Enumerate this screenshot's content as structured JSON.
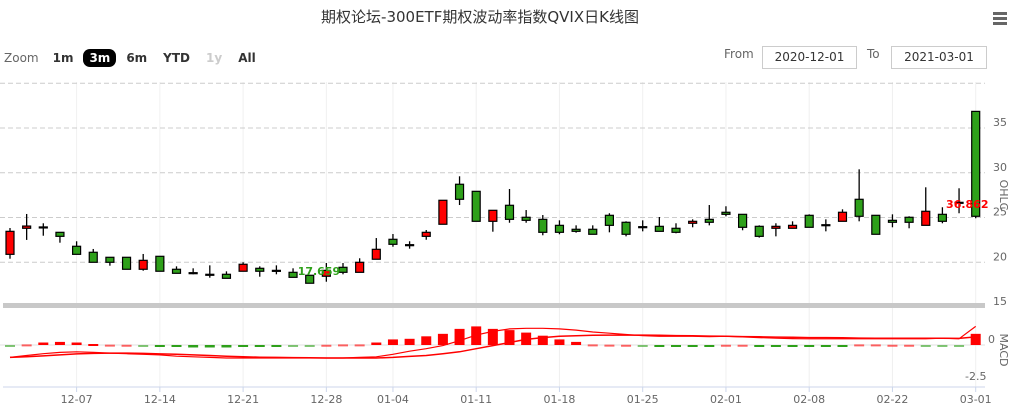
{
  "header": {
    "title": "期权论坛-300ETF期权波动率指数QVIX日K线图",
    "menu_icon": "hamburger-icon"
  },
  "range_selector": {
    "zoom_label": "Zoom",
    "buttons": [
      {
        "label": "1m",
        "state": "normal"
      },
      {
        "label": "3m",
        "state": "active"
      },
      {
        "label": "6m",
        "state": "normal"
      },
      {
        "label": "YTD",
        "state": "normal"
      },
      {
        "label": "1y",
        "state": "disabled"
      },
      {
        "label": "All",
        "state": "normal"
      }
    ],
    "from_label": "From",
    "from_value": "2020-12-01",
    "to_label": "To",
    "to_value": "2021-03-01"
  },
  "colors": {
    "up": "#ff0000",
    "down": "#2ea01a",
    "macd_line": "#ff0000"
  },
  "chart_data": [
    {
      "type": "candlestick",
      "title": "期权论坛-300ETF期权波动率指数QVIX日K线图",
      "ylabel": "OHLC",
      "ylim": [
        15,
        40
      ],
      "yticks": [
        "15",
        "20",
        "25",
        "30",
        "35"
      ],
      "xticks": [
        "12-07",
        "12-14",
        "12-21",
        "12-28",
        "01-04",
        "01-11",
        "01-18",
        "01-25",
        "02-01",
        "02-08",
        "02-22",
        "03-01"
      ],
      "xtick_index": [
        4,
        9,
        14,
        19,
        23,
        28,
        33,
        38,
        43,
        48,
        53,
        58
      ],
      "flags": [
        {
          "text": "17.659",
          "index": 18,
          "color": "#2ea01a"
        },
        {
          "text": "36.862",
          "index": 57,
          "color": "#ff0000"
        }
      ],
      "ohlc": [
        [
          20.89,
          23.83,
          20.4,
          23.46
        ],
        [
          23.8,
          25.4,
          22.5,
          24.05
        ],
        [
          23.95,
          24.36,
          22.97,
          23.95
        ],
        [
          23.35,
          23.35,
          22.19,
          22.9
        ],
        [
          21.79,
          22.35,
          20.89,
          20.89
        ],
        [
          21.12,
          21.49,
          20.0,
          20.0
        ],
        [
          20.56,
          20.56,
          19.62,
          20.0
        ],
        [
          20.56,
          20.56,
          19.22,
          19.22
        ],
        [
          19.22,
          20.93,
          19.06,
          20.22
        ],
        [
          20.67,
          20.67,
          19.0,
          19.0
        ],
        [
          19.22,
          19.55,
          18.77,
          18.77
        ],
        [
          18.84,
          19.33,
          18.66,
          18.84
        ],
        [
          18.66,
          19.66,
          18.28,
          18.66
        ],
        [
          18.66,
          18.99,
          18.21,
          18.21
        ],
        [
          19.0,
          20.0,
          19.0,
          19.78
        ],
        [
          19.33,
          19.55,
          18.39,
          19.0
        ],
        [
          19.1,
          19.66,
          18.66,
          19.1
        ],
        [
          18.88,
          19.33,
          18.32,
          18.32
        ],
        [
          18.55,
          18.55,
          17.659,
          17.66
        ],
        [
          18.44,
          19.92,
          17.83,
          19.1
        ],
        [
          19.44,
          19.92,
          18.66,
          18.88
        ],
        [
          18.88,
          20.45,
          18.88,
          20.0
        ],
        [
          20.34,
          22.71,
          20.34,
          21.45
        ],
        [
          22.57,
          23.16,
          21.74,
          22.01
        ],
        [
          21.97,
          22.35,
          21.52,
          21.97
        ],
        [
          22.9,
          23.61,
          22.52,
          23.35
        ],
        [
          24.25,
          26.93,
          24.25,
          26.93
        ],
        [
          28.72,
          29.61,
          26.4,
          27.04
        ],
        [
          27.93,
          27.93,
          24.58,
          24.58
        ],
        [
          24.58,
          25.81,
          23.42,
          25.81
        ],
        [
          26.37,
          28.19,
          24.42,
          24.8
        ],
        [
          25.03,
          25.84,
          24.42,
          24.69
        ],
        [
          24.8,
          25.28,
          23.02,
          23.35
        ],
        [
          24.13,
          24.69,
          23.13,
          23.35
        ],
        [
          23.69,
          24.13,
          23.31,
          23.46
        ],
        [
          23.69,
          24.13,
          23.13,
          23.13
        ],
        [
          25.25,
          25.48,
          23.35,
          24.13
        ],
        [
          24.47,
          24.58,
          22.9,
          23.13
        ],
        [
          23.98,
          24.69,
          23.46,
          23.98
        ],
        [
          24.02,
          25.06,
          23.46,
          23.46
        ],
        [
          23.8,
          24.36,
          23.24,
          23.35
        ],
        [
          24.36,
          24.8,
          23.91,
          24.58
        ],
        [
          24.8,
          26.4,
          24.13,
          24.47
        ],
        [
          25.59,
          26.26,
          25.14,
          25.36
        ],
        [
          25.36,
          25.36,
          23.58,
          23.91
        ],
        [
          24.02,
          24.13,
          22.76,
          22.9
        ],
        [
          23.8,
          24.36,
          22.9,
          24.02
        ],
        [
          23.8,
          24.58,
          23.8,
          24.13
        ],
        [
          25.25,
          25.36,
          23.91,
          23.91
        ],
        [
          24.2,
          24.8,
          23.46,
          24.2
        ],
        [
          24.58,
          25.92,
          24.58,
          25.59
        ],
        [
          27.04,
          30.39,
          24.58,
          25.14
        ],
        [
          25.25,
          25.25,
          23.13,
          23.13
        ],
        [
          24.69,
          25.36,
          23.91,
          24.47
        ],
        [
          25.03,
          25.14,
          23.8,
          24.47
        ],
        [
          24.13,
          28.38,
          24.13,
          25.7
        ],
        [
          25.36,
          26.15,
          24.36,
          24.58
        ],
        [
          26.7,
          28.27,
          25.48,
          26.7
        ],
        [
          36.862,
          36.862,
          24.92,
          25.14
        ]
      ]
    },
    {
      "type": "macd",
      "ylabel": "MACD",
      "ylim": [
        -3.3,
        2.7
      ],
      "yticks": [
        "0",
        "-2.5"
      ],
      "hist": [
        -0.02,
        0.05,
        0.2,
        0.25,
        0.2,
        0.08,
        0.03,
        0.02,
        -0.05,
        -0.1,
        -0.12,
        -0.2,
        -0.2,
        -0.2,
        -0.12,
        -0.1,
        -0.08,
        -0.05,
        -0.03,
        0.02,
        0.05,
        0.05,
        0.2,
        0.45,
        0.5,
        0.7,
        0.9,
        1.3,
        1.5,
        1.3,
        1.2,
        1.0,
        0.75,
        0.45,
        0.25,
        0.05,
        0.03,
        0.02,
        -0.05,
        -0.1,
        -0.1,
        -0.1,
        -0.08,
        0.02,
        0.02,
        -0.1,
        -0.12,
        -0.15,
        -0.12,
        -0.1,
        -0.08,
        0.05,
        0.05,
        0.02,
        0.02,
        -0.05,
        -0.05,
        -0.05,
        0.9
      ],
      "dif": [
        -1.0,
        -0.85,
        -0.7,
        -0.6,
        -0.55,
        -0.6,
        -0.65,
        -0.7,
        -0.75,
        -0.8,
        -0.9,
        -0.95,
        -1.0,
        -1.05,
        -1.05,
        -1.05,
        -1.05,
        -1.05,
        -1.05,
        -1.05,
        -1.05,
        -1.0,
        -0.95,
        -0.75,
        -0.5,
        -0.3,
        -0.05,
        0.35,
        0.8,
        1.1,
        1.3,
        1.35,
        1.35,
        1.3,
        1.2,
        1.05,
        0.95,
        0.85,
        0.75,
        0.7,
        0.7,
        0.7,
        0.68,
        0.7,
        0.65,
        0.6,
        0.55,
        0.52,
        0.5,
        0.5,
        0.5,
        0.5,
        0.5,
        0.5,
        0.5,
        0.5,
        0.55,
        0.5,
        1.5
      ],
      "dea": [
        -1.0,
        -0.95,
        -0.88,
        -0.8,
        -0.72,
        -0.68,
        -0.65,
        -0.65,
        -0.68,
        -0.72,
        -0.75,
        -0.8,
        -0.85,
        -0.9,
        -0.95,
        -0.98,
        -1.0,
        -1.02,
        -1.03,
        -1.05,
        -1.05,
        -1.05,
        -1.05,
        -1.0,
        -0.92,
        -0.85,
        -0.7,
        -0.55,
        -0.3,
        -0.05,
        0.2,
        0.45,
        0.6,
        0.7,
        0.75,
        0.78,
        0.8,
        0.8,
        0.8,
        0.78,
        0.76,
        0.74,
        0.72,
        0.7,
        0.68,
        0.66,
        0.64,
        0.62,
        0.6,
        0.6,
        0.58,
        0.56,
        0.55,
        0.55,
        0.55,
        0.55,
        0.55,
        0.53,
        0.65
      ]
    }
  ]
}
